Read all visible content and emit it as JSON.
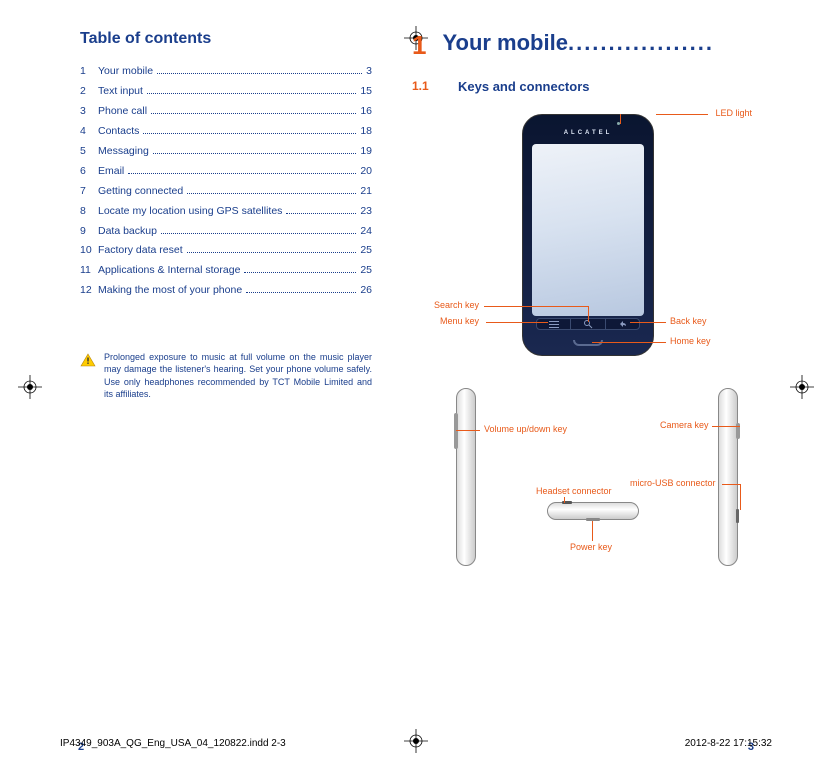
{
  "colors": {
    "blue": "#1a3e8c",
    "orange": "#e85a1a"
  },
  "leftPage": {
    "tocTitle": "Table of contents",
    "toc": [
      {
        "num": "1",
        "label": "Your mobile",
        "page": "3"
      },
      {
        "num": "2",
        "label": "Text input",
        "page": "15"
      },
      {
        "num": "3",
        "label": "Phone call",
        "page": "16"
      },
      {
        "num": "4",
        "label": "Contacts",
        "page": "18"
      },
      {
        "num": "5",
        "label": "Messaging",
        "page": "19"
      },
      {
        "num": "6",
        "label": "Email",
        "page": "20"
      },
      {
        "num": "7",
        "label": "Getting connected",
        "page": "21"
      },
      {
        "num": "8",
        "label": "Locate my location using GPS satellites",
        "page": "23"
      },
      {
        "num": "9",
        "label": "Data backup",
        "page": "24"
      },
      {
        "num": "10",
        "label": "Factory data reset",
        "page": "25"
      },
      {
        "num": "11",
        "label": "Applications & Internal storage",
        "page": "25"
      },
      {
        "num": "12",
        "label": "Making the most of your phone",
        "page": "26"
      }
    ],
    "warning": "Prolonged exposure to music at full volume on the music player may damage the listener's hearing. Set your phone volume safely. Use only headphones recommended by TCT Mobile Limited and its affiliates.",
    "pageNumber": "2"
  },
  "rightPage": {
    "chapterNum": "1",
    "chapterTitle": "Your mobile",
    "chapterDots": "..................",
    "sectionNum": "1.1",
    "sectionTitle": "Keys and connectors",
    "brand": "ALCATEL",
    "callouts": {
      "led": "LED light",
      "search": "Search key",
      "menu": "Menu key",
      "back": "Back key",
      "home": "Home key",
      "volume": "Volume up/down key",
      "camera": "Camera key",
      "usb": "micro-USB connector",
      "headset": "Headset connector",
      "power": "Power key"
    },
    "pageNumber": "3"
  },
  "footer": {
    "file": "IP4349_903A_QG_Eng_USA_04_120822.indd   2-3",
    "timestamp": "2012-8-22   17:15:32"
  }
}
